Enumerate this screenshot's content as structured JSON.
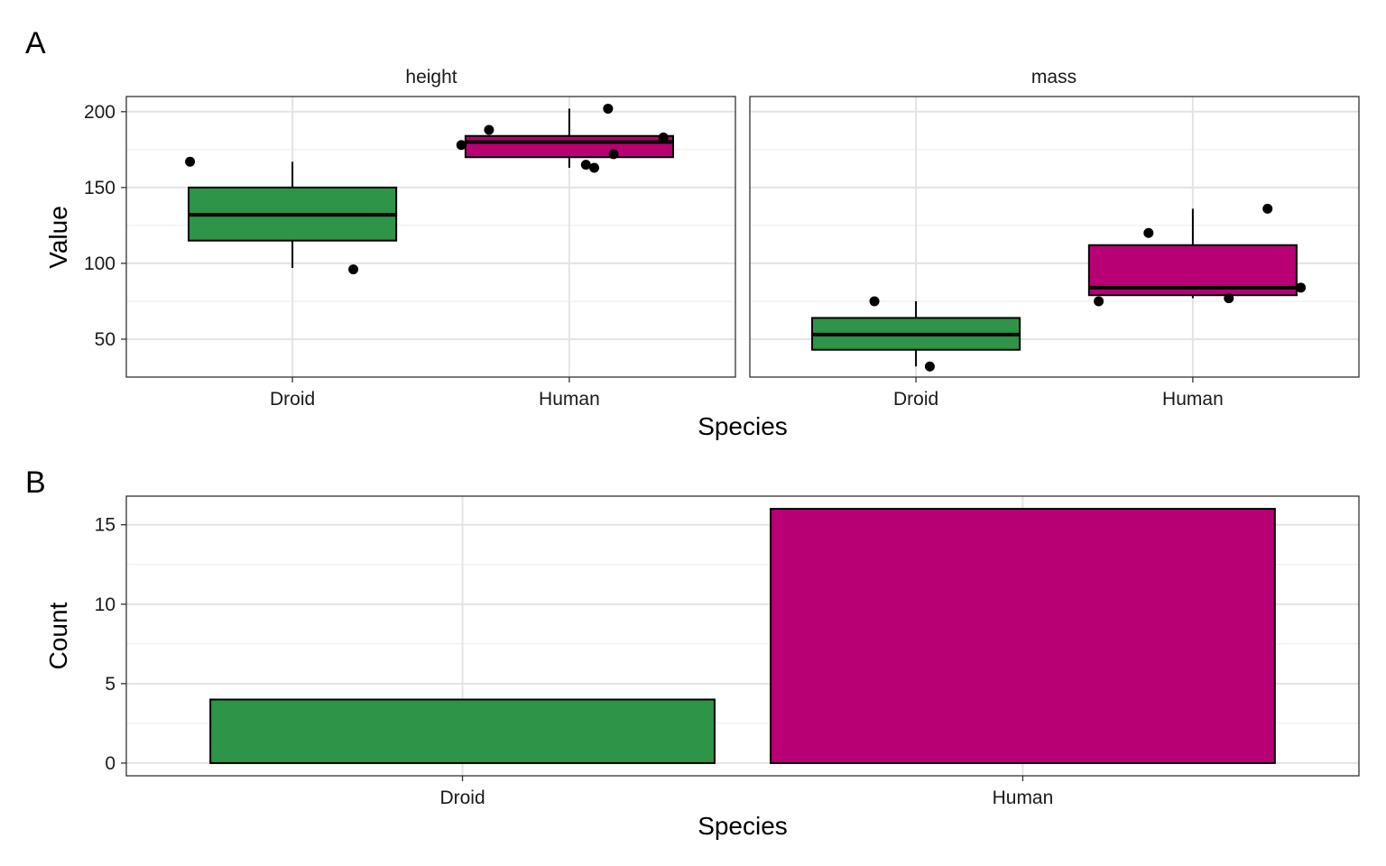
{
  "chart_data": [
    {
      "tag": "A",
      "type": "boxplot",
      "xlabel": "Species",
      "ylabel": "Value",
      "ylim": [
        25,
        210
      ],
      "y_ticks": [
        50,
        100,
        150,
        200
      ],
      "grid": true,
      "legend": "none",
      "categories": [
        "Droid",
        "Human"
      ],
      "colors": {
        "Droid": "#2e9447",
        "Human": "#b80074"
      },
      "facets": [
        {
          "label": "height",
          "boxes": [
            {
              "category": "Droid",
              "whisker_low": 97,
              "q1": 115,
              "median": 132,
              "q3": 150,
              "whisker_high": 167
            },
            {
              "category": "Human",
              "whisker_low": 163,
              "q1": 170,
              "median": 180,
              "q3": 184,
              "whisker_high": 202
            }
          ],
          "points": [
            {
              "category": "Droid",
              "y": 167,
              "jitter": -0.37
            },
            {
              "category": "Droid",
              "y": 96,
              "jitter": 0.22
            },
            {
              "category": "Human",
              "y": 178,
              "jitter": -0.39
            },
            {
              "category": "Human",
              "y": 188,
              "jitter": -0.29
            },
            {
              "category": "Human",
              "y": 165,
              "jitter": 0.06
            },
            {
              "category": "Human",
              "y": 163,
              "jitter": 0.09
            },
            {
              "category": "Human",
              "y": 202,
              "jitter": 0.14
            },
            {
              "category": "Human",
              "y": 172,
              "jitter": 0.16
            },
            {
              "category": "Human",
              "y": 183,
              "jitter": 0.34
            }
          ]
        },
        {
          "label": "mass",
          "boxes": [
            {
              "category": "Droid",
              "whisker_low": 32,
              "q1": 43,
              "median": 53,
              "q3": 64,
              "whisker_high": 75
            },
            {
              "category": "Human",
              "whisker_low": 77,
              "q1": 79,
              "median": 84,
              "q3": 112,
              "whisker_high": 136
            }
          ],
          "points": [
            {
              "category": "Droid",
              "y": 75,
              "jitter": -0.15
            },
            {
              "category": "Droid",
              "y": 32,
              "jitter": 0.05
            },
            {
              "category": "Human",
              "y": 120,
              "jitter": -0.16
            },
            {
              "category": "Human",
              "y": 75,
              "jitter": -0.34
            },
            {
              "category": "Human",
              "y": 77,
              "jitter": 0.13
            },
            {
              "category": "Human",
              "y": 136,
              "jitter": 0.27
            },
            {
              "category": "Human",
              "y": 84,
              "jitter": 0.39
            }
          ]
        }
      ]
    },
    {
      "tag": "B",
      "type": "bar",
      "xlabel": "Species",
      "ylabel": "Count",
      "categories": [
        "Droid",
        "Human"
      ],
      "values": [
        4,
        16
      ],
      "ylim": [
        -0.8,
        16.8
      ],
      "y_ticks": [
        0,
        5,
        10,
        15
      ],
      "grid": true,
      "legend": "none",
      "colors": [
        "#2e9447",
        "#b80074"
      ]
    }
  ]
}
